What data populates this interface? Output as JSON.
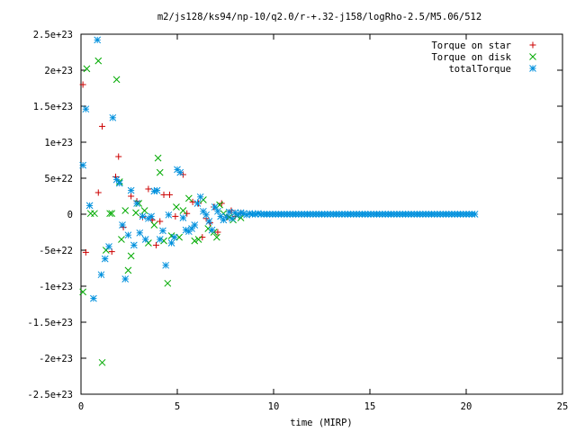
{
  "chart_data": {
    "type": "scatter",
    "title": "m2/js128/ks94/np-10/q2.0/r-+.32-j158/logRho-2.5/M5.06/512",
    "xlabel": "time (MIRP)",
    "ylabel": "",
    "xlim": [
      0,
      25
    ],
    "ylim": [
      -2.5e+23,
      2.5e+23
    ],
    "x_ticks": [
      0,
      5,
      10,
      15,
      20,
      25
    ],
    "x_tick_labels": [
      "0",
      "5",
      "10",
      "15",
      "20",
      "25"
    ],
    "y_ticks": [
      -2.5e+23,
      -2e+23,
      -1.5e+23,
      -1e+23,
      -5e+22,
      0,
      5e+22,
      1e+23,
      1.5e+23,
      2e+23,
      2.5e+23
    ],
    "y_tick_labels": [
      "-2.5e+23",
      "-2e+23",
      "-1.5e+23",
      "-1e+23",
      "-5e+22",
      "0",
      "5e+22",
      "1e+23",
      "1.5e+23",
      "2e+23",
      "2.5e+23"
    ],
    "grid": false,
    "legend_position": "top-right",
    "series": [
      {
        "name": "Torque on star",
        "marker": "plus",
        "color": "#cc0000",
        "x": [
          0.1,
          0.25,
          0.9,
          1.1,
          1.6,
          1.8,
          1.95,
          2.2,
          2.6,
          2.9,
          3.2,
          3.5,
          3.7,
          3.9,
          4.1,
          4.3,
          4.6,
          4.9,
          5.3,
          5.5,
          5.8,
          6.1,
          6.3,
          6.5,
          6.7,
          6.9,
          7.1,
          7.3,
          7.6,
          7.8,
          8.0,
          8.3
        ],
        "y": [
          1.8e+23,
          -5.3e+22,
          3e+22,
          1.22e+23,
          -5.2e+22,
          5.2e+22,
          8e+22,
          -1.8e+22,
          2.5e+22,
          1.8e+22,
          -4e+21,
          3.5e+22,
          -8e+21,
          -4.3e+22,
          -1e+22,
          2.7e+22,
          2.7e+22,
          -3e+21,
          5.5e+22,
          1e+21,
          1.7e+22,
          1.5e+22,
          -3.2e+22,
          -6e+21,
          -1.2e+22,
          1e+22,
          -2.5e+22,
          1.5e+22,
          -4e+21,
          5e+21,
          -3e+21,
          2e+21
        ]
      },
      {
        "name": "Torque on disk",
        "marker": "cross",
        "color": "#00aa00",
        "x": [
          0.1,
          0.3,
          0.5,
          0.7,
          0.9,
          1.1,
          1.3,
          1.5,
          1.6,
          1.85,
          2.0,
          2.1,
          2.3,
          2.45,
          2.6,
          2.85,
          3.0,
          3.3,
          3.5,
          3.8,
          4.0,
          4.1,
          4.3,
          4.5,
          4.7,
          4.95,
          5.1,
          5.3,
          5.6,
          5.9,
          6.1,
          6.35,
          6.6,
          6.9,
          7.05,
          7.2,
          7.4,
          7.7,
          7.9,
          8.1,
          8.3
        ],
        "y": [
          -1.08e+23,
          2.02e+23,
          1e+21,
          1e+21,
          2.13e+23,
          -2.06e+23,
          -5e+22,
          1e+21,
          1e+21,
          1.87e+23,
          4.5e+22,
          -3.5e+22,
          5e+21,
          -7.8e+22,
          -5.8e+22,
          2e+21,
          1.5e+22,
          5e+21,
          -4e+22,
          -1.5e+22,
          7.8e+22,
          5.8e+22,
          -3.7e+22,
          -9.6e+22,
          -3e+22,
          1e+22,
          -3.2e+22,
          5e+21,
          2.2e+22,
          -3.7e+22,
          -3.5e+22,
          2e+22,
          -2e+22,
          -2.5e+22,
          -3.2e+22,
          1.3e+22,
          1e+21,
          -4e+21,
          -8e+21,
          -2e+21,
          -5e+21
        ]
      },
      {
        "name": "totalTorque",
        "marker": "star",
        "color": "#0090dd",
        "x": [
          0.1,
          0.25,
          0.45,
          0.65,
          0.85,
          1.05,
          1.25,
          1.45,
          1.65,
          1.85,
          2.0,
          2.15,
          2.3,
          2.45,
          2.6,
          2.75,
          2.9,
          3.05,
          3.2,
          3.35,
          3.5,
          3.65,
          3.8,
          3.95,
          4.1,
          4.25,
          4.4,
          4.55,
          4.7,
          4.85,
          5.0,
          5.15,
          5.3,
          5.45,
          5.6,
          5.75,
          5.9,
          6.05,
          6.2,
          6.35,
          6.5,
          6.65,
          6.8,
          6.95,
          7.1,
          7.25,
          7.4,
          7.55,
          7.7,
          7.85,
          8.0,
          8.15,
          8.3,
          8.45,
          8.6,
          8.75,
          8.9,
          9.05,
          9.2,
          9.35,
          9.5,
          9.65,
          9.8,
          9.95,
          10.1,
          10.25,
          10.4,
          10.55,
          10.7,
          10.85,
          11.0,
          11.15,
          11.3,
          11.45,
          11.6,
          11.75,
          11.9,
          12.05,
          12.2,
          12.35,
          12.5,
          12.65,
          12.8,
          12.95,
          13.1,
          13.25,
          13.4,
          13.55,
          13.7,
          13.85,
          14.0,
          14.15,
          14.3,
          14.45,
          14.6,
          14.75,
          14.9,
          15.05,
          15.2,
          15.35,
          15.5,
          15.65,
          15.8,
          15.95,
          16.1,
          16.25,
          16.4,
          16.55,
          16.7,
          16.85,
          17.0,
          17.15,
          17.3,
          17.45,
          17.6,
          17.75,
          17.9,
          18.05,
          18.2,
          18.35,
          18.5,
          18.65,
          18.8,
          18.95,
          19.1,
          19.25,
          19.4,
          19.55,
          19.7,
          19.85,
          20.0,
          20.15,
          20.3,
          20.45
        ],
        "y": [
          6.8e+22,
          1.46e+23,
          1.2e+22,
          -1.17e+23,
          2.42e+23,
          -8.4e+22,
          -6.2e+22,
          -4.5e+22,
          1.34e+23,
          4.8e+22,
          4.3e+22,
          -1.5e+22,
          -9e+22,
          -2.9e+22,
          3.3e+22,
          -4.3e+22,
          1.5e+22,
          -2.6e+22,
          -3e+21,
          -3.5e+22,
          -6e+21,
          -3e+21,
          3.2e+22,
          3.3e+22,
          -3.5e+22,
          -2.3e+22,
          -7.1e+22,
          -1e+21,
          -4e+22,
          -3.2e+22,
          6.2e+22,
          5.8e+22,
          -5e+21,
          -2.2e+22,
          -2.4e+22,
          -2e+22,
          -1.5e+22,
          1.5e+22,
          2.4e+22,
          4e+21,
          -1e+21,
          -1e+22,
          -2.2e+22,
          1e+22,
          4e+21,
          -3e+21,
          -8e+21,
          -4e+21,
          3e+21,
          -6e+21,
          2e+21,
          -1e+21,
          2e+21,
          1e+21,
          -1e+21,
          1e+21,
          0,
          0,
          1e+21,
          0,
          0,
          0,
          0,
          0,
          0,
          0,
          0,
          0,
          0,
          0,
          0,
          0,
          0,
          0,
          0,
          0,
          0,
          0,
          0,
          0,
          0,
          0,
          0,
          0,
          0,
          0,
          0,
          0,
          0,
          0,
          0,
          0,
          0,
          0,
          0,
          0,
          0,
          0,
          0,
          0,
          0,
          0,
          0,
          0,
          0,
          0,
          0,
          0,
          0,
          0,
          0,
          0,
          0,
          0,
          0,
          0,
          0,
          0,
          0,
          0,
          0,
          0,
          0,
          0,
          0,
          0,
          0,
          0,
          0,
          0,
          0,
          0,
          0,
          0
        ]
      }
    ]
  }
}
